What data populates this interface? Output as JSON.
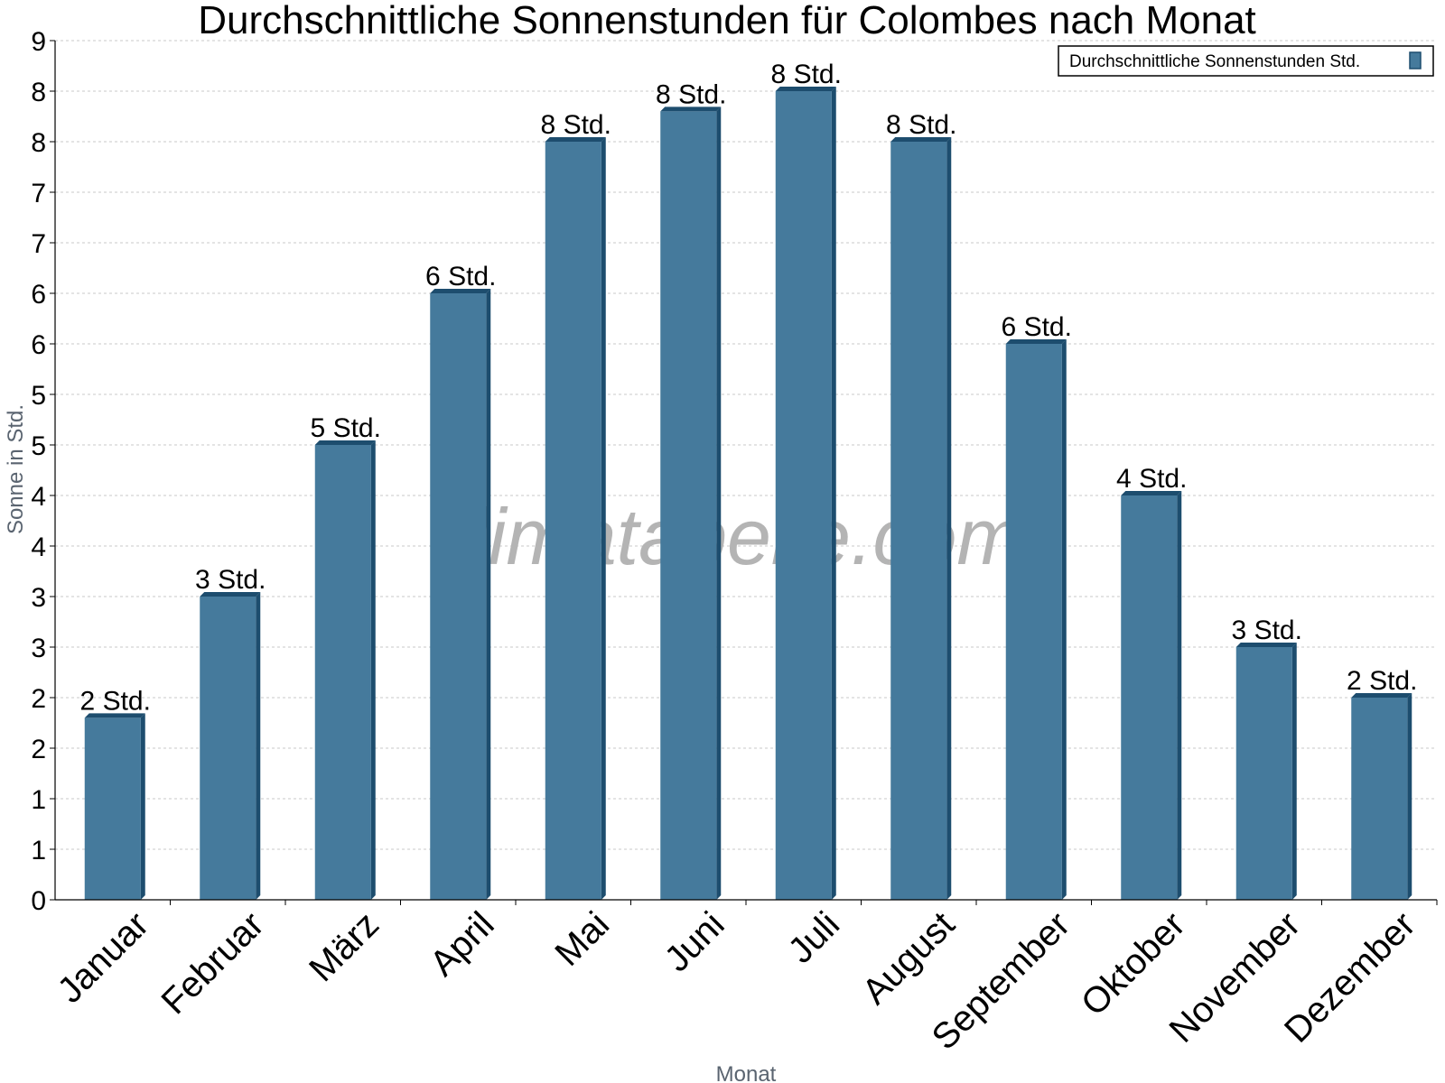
{
  "chart_data": {
    "type": "bar",
    "title": "Durchschnittliche Sonnenstunden für Colombes nach Monat",
    "xlabel": "Monat",
    "ylabel": "Sonne in Std.",
    "categories": [
      "Januar",
      "Februar",
      "März",
      "April",
      "Mai",
      "Juni",
      "Juli",
      "August",
      "September",
      "Oktober",
      "November",
      "Dezember"
    ],
    "series": [
      {
        "name": "Durchschnittliche Sonnenstunden Std.",
        "values": [
          1.8,
          3.0,
          4.5,
          6.0,
          7.5,
          7.8,
          8.0,
          7.5,
          5.5,
          4.0,
          2.5,
          2.0
        ],
        "data_labels": [
          "2 Std.",
          "3 Std.",
          "5 Std.",
          "6 Std.",
          "8 Std.",
          "8 Std.",
          "8 Std.",
          "8 Std.",
          "6 Std.",
          "4 Std.",
          "3 Std.",
          "2 Std."
        ],
        "color": "#457a9c"
      }
    ],
    "ylim": [
      0,
      8.5
    ],
    "yticks": [
      0,
      0.5,
      1,
      1.5,
      2,
      2.5,
      3,
      3.5,
      4,
      4.5,
      5,
      5.5,
      6,
      6.5,
      7,
      7.5,
      8,
      8.5
    ],
    "ytick_labels": [
      "0",
      "1",
      "1",
      "2",
      "2",
      "3",
      "3",
      "4",
      "4",
      "5",
      "5",
      "6",
      "6",
      "7",
      "7",
      "8",
      "8",
      "9"
    ],
    "grid": true,
    "legend_position": "top-right",
    "watermark": "klimatabelle.com",
    "colors": {
      "bar": "#457a9c",
      "bar_side": "#1d4d6e",
      "bar_top": "#1d4d6e",
      "grid": "#c8c8c8"
    }
  }
}
